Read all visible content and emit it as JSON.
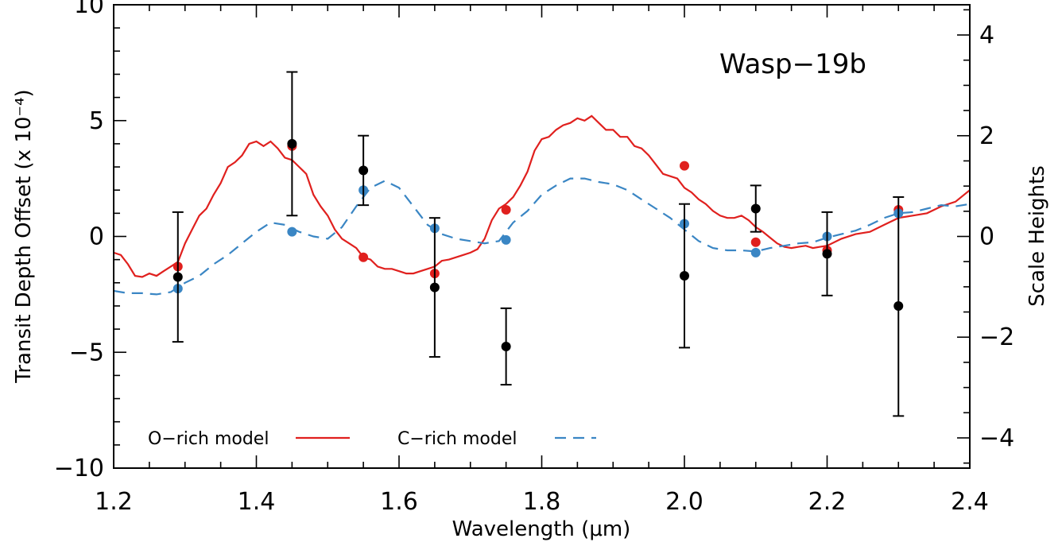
{
  "chart_data": {
    "type": "line",
    "title": "",
    "annotation": "Wasp−19b",
    "xlabel": "Wavelength (μm)",
    "ylabel": "Transit Depth Offset (x 10⁻⁴)",
    "y2label": "Scale Heights",
    "xlim": [
      1.2,
      2.4
    ],
    "ylim": [
      -10,
      10
    ],
    "y2lim": [
      -4.6,
      4.6
    ],
    "xticks": [
      "1.2",
      "1.4",
      "1.6",
      "1.8",
      "2.0",
      "2.2",
      "2.4"
    ],
    "yticks": [
      "10",
      "5",
      "0",
      "−5",
      "−10"
    ],
    "y2ticks": [
      "4",
      "2",
      "0",
      "−2",
      "−4"
    ],
    "xtick_values": [
      1.2,
      1.4,
      1.6,
      1.8,
      2.0,
      2.2,
      2.4
    ],
    "ytick_values": [
      10,
      5,
      0,
      -5,
      -10
    ],
    "y2tick_values": [
      4,
      2,
      0,
      -2,
      -4
    ],
    "colors": {
      "o_rich": "#e0201e",
      "c_rich": "#3a86c4",
      "data": "#000000"
    },
    "legend": [
      {
        "label": "O−rich model",
        "style": "solid",
        "color": "#e0201e"
      },
      {
        "label": "C−rich model",
        "style": "dashed",
        "color": "#3a86c4"
      }
    ],
    "legend_placement": "bottom-left",
    "series": [
      {
        "name": "O−rich model",
        "style": "solid",
        "x": [
          1.2,
          1.21,
          1.22,
          1.23,
          1.24,
          1.25,
          1.26,
          1.27,
          1.28,
          1.29,
          1.3,
          1.31,
          1.32,
          1.33,
          1.34,
          1.35,
          1.36,
          1.37,
          1.38,
          1.39,
          1.4,
          1.41,
          1.42,
          1.43,
          1.44,
          1.45,
          1.46,
          1.47,
          1.48,
          1.49,
          1.5,
          1.51,
          1.52,
          1.53,
          1.54,
          1.55,
          1.56,
          1.57,
          1.58,
          1.59,
          1.6,
          1.61,
          1.62,
          1.63,
          1.64,
          1.65,
          1.66,
          1.67,
          1.68,
          1.69,
          1.7,
          1.71,
          1.72,
          1.73,
          1.74,
          1.75,
          1.76,
          1.77,
          1.78,
          1.79,
          1.8,
          1.81,
          1.82,
          1.83,
          1.84,
          1.85,
          1.86,
          1.87,
          1.88,
          1.89,
          1.9,
          1.91,
          1.92,
          1.93,
          1.94,
          1.95,
          1.96,
          1.97,
          1.98,
          1.99,
          2.0,
          2.01,
          2.02,
          2.03,
          2.04,
          2.05,
          2.06,
          2.07,
          2.08,
          2.09,
          2.1,
          2.11,
          2.12,
          2.13,
          2.14,
          2.15,
          2.16,
          2.17,
          2.18,
          2.19,
          2.2,
          2.22,
          2.24,
          2.26,
          2.28,
          2.3,
          2.32,
          2.34,
          2.36,
          2.38,
          2.4
        ],
        "values": [
          -0.7,
          -0.8,
          -1.2,
          -1.7,
          -1.75,
          -1.6,
          -1.7,
          -1.5,
          -1.3,
          -1.1,
          -0.3,
          0.3,
          0.9,
          1.2,
          1.8,
          2.3,
          3.0,
          3.2,
          3.5,
          4.0,
          4.1,
          3.9,
          4.1,
          3.8,
          3.4,
          3.3,
          3.0,
          2.7,
          1.8,
          1.3,
          0.9,
          0.3,
          -0.1,
          -0.3,
          -0.5,
          -0.9,
          -1.0,
          -1.3,
          -1.4,
          -1.4,
          -1.5,
          -1.6,
          -1.6,
          -1.5,
          -1.4,
          -1.3,
          -1.05,
          -1.0,
          -0.9,
          -0.8,
          -0.7,
          -0.55,
          -0.1,
          0.7,
          1.2,
          1.4,
          1.7,
          2.2,
          2.8,
          3.7,
          4.2,
          4.3,
          4.6,
          4.8,
          4.9,
          5.1,
          5.0,
          5.2,
          4.9,
          4.6,
          4.6,
          4.3,
          4.3,
          3.9,
          3.8,
          3.5,
          3.1,
          2.7,
          2.6,
          2.5,
          2.1,
          1.9,
          1.6,
          1.4,
          1.1,
          0.9,
          0.8,
          0.8,
          0.9,
          0.7,
          0.4,
          0.2,
          -0.05,
          -0.3,
          -0.45,
          -0.5,
          -0.45,
          -0.4,
          -0.5,
          -0.45,
          -0.4,
          -0.1,
          0.1,
          0.2,
          0.5,
          0.8,
          0.9,
          1.0,
          1.3,
          1.5,
          2.0
        ]
      },
      {
        "name": "C−rich model",
        "style": "dashed",
        "x": [
          1.2,
          1.22,
          1.24,
          1.26,
          1.28,
          1.3,
          1.32,
          1.34,
          1.36,
          1.38,
          1.4,
          1.42,
          1.44,
          1.46,
          1.48,
          1.5,
          1.52,
          1.54,
          1.56,
          1.58,
          1.6,
          1.62,
          1.64,
          1.66,
          1.68,
          1.7,
          1.72,
          1.74,
          1.76,
          1.78,
          1.8,
          1.82,
          1.84,
          1.86,
          1.88,
          1.9,
          1.92,
          1.94,
          1.96,
          1.98,
          2.0,
          2.02,
          2.04,
          2.06,
          2.08,
          2.1,
          2.12,
          2.14,
          2.16,
          2.18,
          2.2,
          2.22,
          2.24,
          2.26,
          2.28,
          2.3,
          2.32,
          2.34,
          2.36,
          2.38,
          2.4
        ],
        "values": [
          -2.35,
          -2.45,
          -2.45,
          -2.5,
          -2.4,
          -2.0,
          -1.7,
          -1.2,
          -0.8,
          -0.3,
          0.2,
          0.6,
          0.5,
          0.2,
          0.0,
          -0.1,
          0.4,
          1.3,
          2.1,
          2.4,
          2.1,
          1.3,
          0.5,
          0.1,
          -0.1,
          -0.2,
          -0.3,
          -0.2,
          0.6,
          1.1,
          1.8,
          2.2,
          2.5,
          2.5,
          2.35,
          2.25,
          2.0,
          1.6,
          1.2,
          0.8,
          0.3,
          -0.2,
          -0.5,
          -0.6,
          -0.6,
          -0.65,
          -0.5,
          -0.4,
          -0.3,
          -0.25,
          -0.05,
          0.1,
          0.25,
          0.5,
          0.8,
          1.0,
          1.05,
          1.2,
          1.35,
          1.3,
          1.4
        ]
      }
    ],
    "model_points": {
      "o_rich": [
        {
          "x": 1.29,
          "y": -1.3
        },
        {
          "x": 1.45,
          "y": 3.9
        },
        {
          "x": 1.55,
          "y": -0.9
        },
        {
          "x": 1.65,
          "y": -1.6
        },
        {
          "x": 1.75,
          "y": 1.15
        },
        {
          "x": 2.0,
          "y": 3.05
        },
        {
          "x": 2.1,
          "y": -0.25
        },
        {
          "x": 2.2,
          "y": -0.6
        },
        {
          "x": 2.3,
          "y": 1.15
        }
      ],
      "c_rich": [
        {
          "x": 1.29,
          "y": -2.25
        },
        {
          "x": 1.45,
          "y": 0.2
        },
        {
          "x": 1.55,
          "y": 2.0
        },
        {
          "x": 1.65,
          "y": 0.35
        },
        {
          "x": 1.75,
          "y": -0.15
        },
        {
          "x": 2.0,
          "y": 0.55
        },
        {
          "x": 2.1,
          "y": -0.7
        },
        {
          "x": 2.2,
          "y": 0.0
        },
        {
          "x": 2.3,
          "y": 1.0
        }
      ]
    },
    "observations": [
      {
        "x": 1.29,
        "y": -1.75,
        "ylow": -4.55,
        "yhigh": 1.05
      },
      {
        "x": 1.45,
        "y": 4.0,
        "ylow": 0.9,
        "yhigh": 7.1
      },
      {
        "x": 1.55,
        "y": 2.85,
        "ylow": 1.35,
        "yhigh": 4.35
      },
      {
        "x": 1.65,
        "y": -2.2,
        "ylow": -5.2,
        "yhigh": 0.8
      },
      {
        "x": 1.75,
        "y": -4.75,
        "ylow": -6.4,
        "yhigh": -3.1
      },
      {
        "x": 2.0,
        "y": -1.7,
        "ylow": -4.8,
        "yhigh": 1.4
      },
      {
        "x": 2.1,
        "y": 1.2,
        "ylow": 0.2,
        "yhigh": 2.2
      },
      {
        "x": 2.2,
        "y": -0.75,
        "ylow": -2.55,
        "yhigh": 1.05
      },
      {
        "x": 2.3,
        "y": -3.0,
        "ylow": -7.75,
        "yhigh": 1.7
      }
    ]
  }
}
